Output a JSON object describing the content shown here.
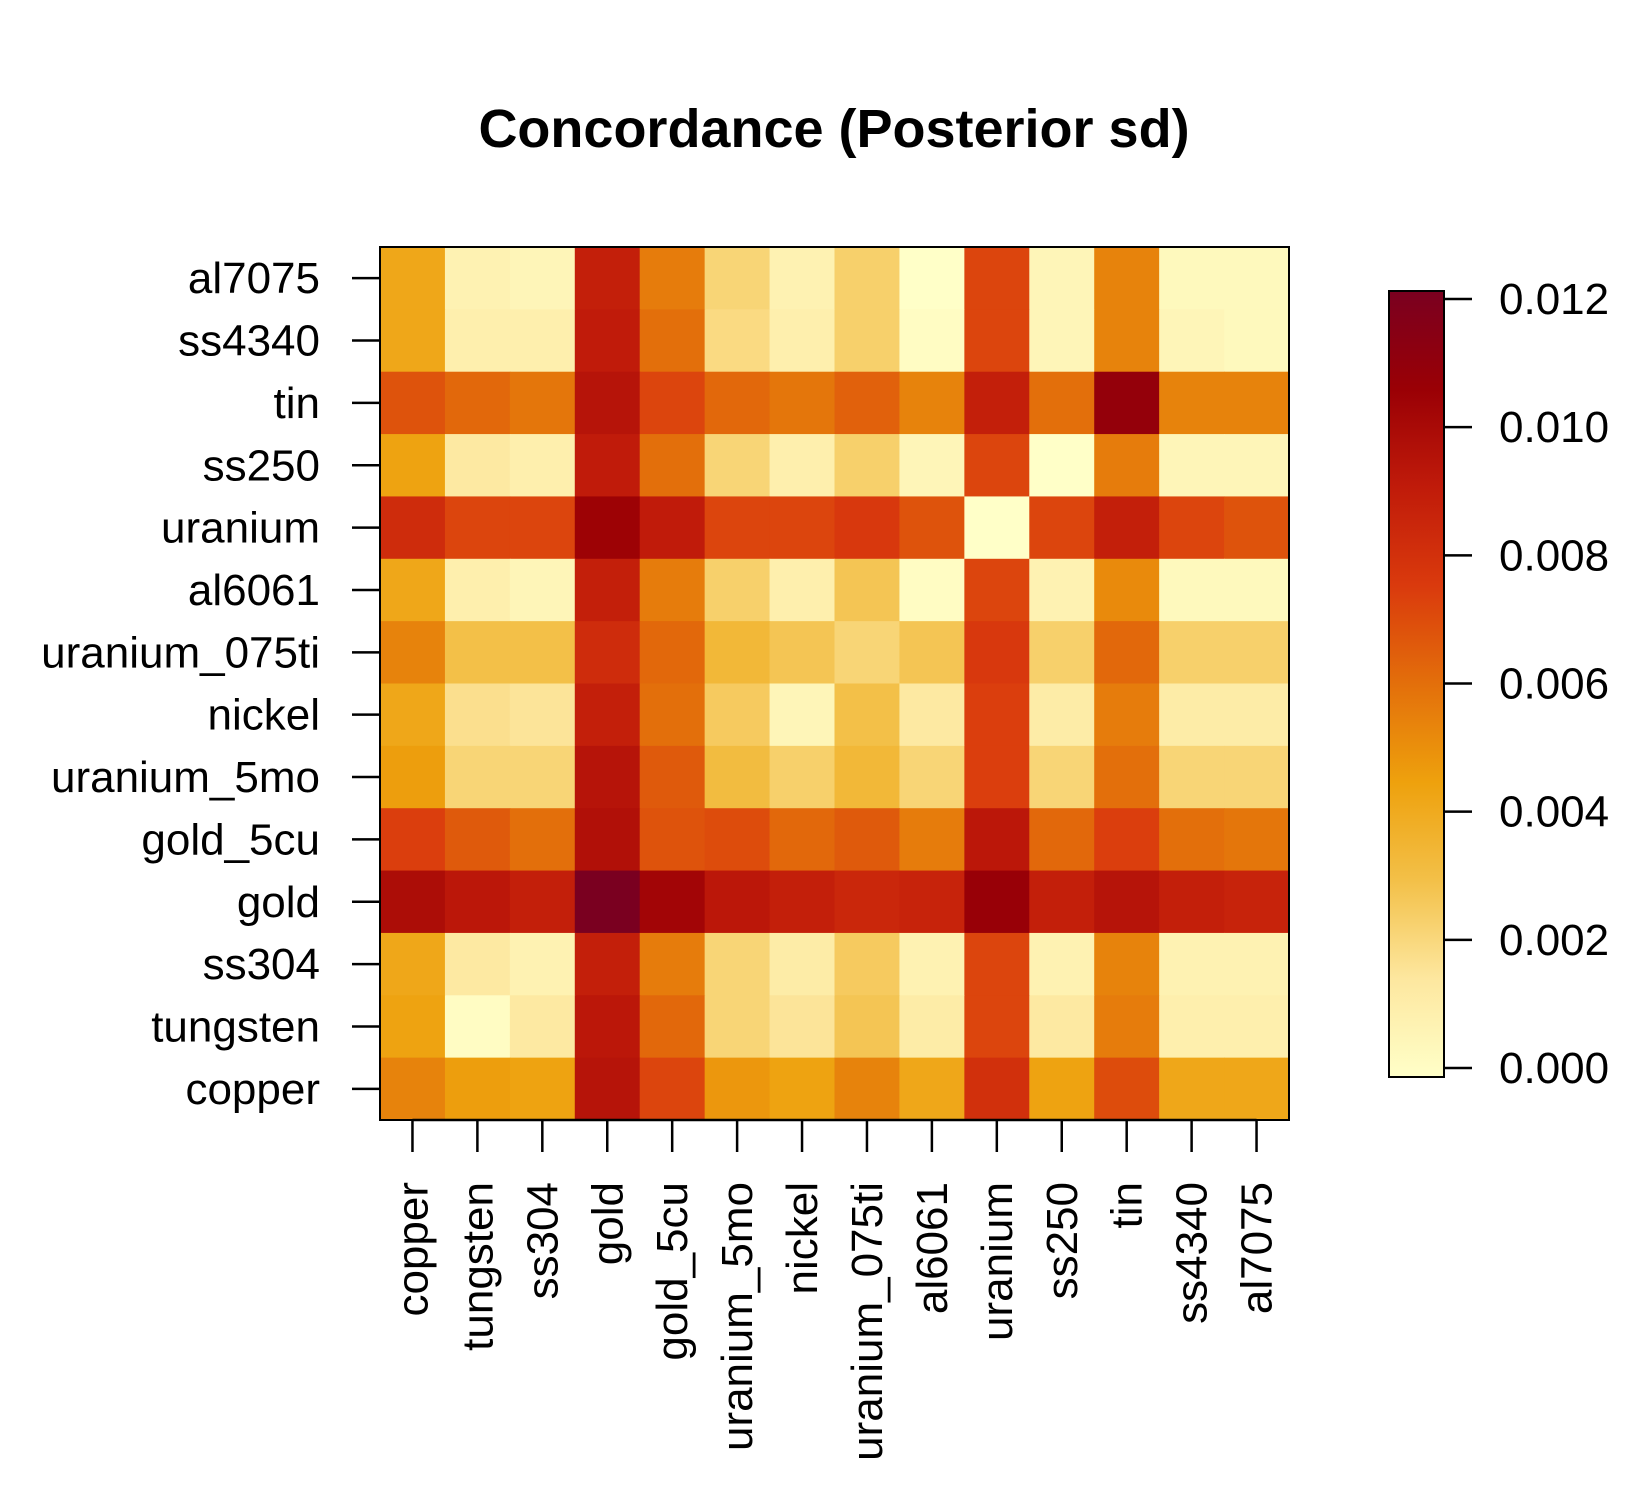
{
  "chart_data": {
    "type": "heatmap",
    "title": "Concordance (Posterior sd)",
    "xlabel": "",
    "ylabel": "",
    "x_categories": [
      "copper",
      "tungsten",
      "ss304",
      "gold",
      "gold_5cu",
      "uranium_5mo",
      "nickel",
      "uranium_075ti",
      "al6061",
      "uranium",
      "ss250",
      "tin",
      "ss4340",
      "al7075"
    ],
    "y_categories_top_to_bottom": [
      "al7075",
      "ss4340",
      "tin",
      "ss250",
      "uranium",
      "al6061",
      "uranium_075ti",
      "nickel",
      "uranium_5mo",
      "gold_5cu",
      "gold",
      "ss304",
      "tungsten",
      "copper"
    ],
    "values": [
      [
        0.0042,
        0.0008,
        0.0006,
        0.0088,
        0.0056,
        0.0022,
        0.0008,
        0.0024,
        0.0,
        0.0072,
        0.0006,
        0.0054,
        0.0004,
        0.0004
      ],
      [
        0.0042,
        0.001,
        0.001,
        0.009,
        0.006,
        0.002,
        0.001,
        0.0024,
        0.0002,
        0.0072,
        0.0006,
        0.0054,
        0.0006,
        0.0004
      ],
      [
        0.0068,
        0.0062,
        0.0058,
        0.0094,
        0.0072,
        0.0062,
        0.0058,
        0.0064,
        0.0054,
        0.0088,
        0.006,
        0.0108,
        0.0054,
        0.0054
      ],
      [
        0.0044,
        0.0014,
        0.001,
        0.009,
        0.006,
        0.0022,
        0.001,
        0.0024,
        0.0006,
        0.0072,
        0.0,
        0.0056,
        0.0006,
        0.0006
      ],
      [
        0.0082,
        0.0072,
        0.0072,
        0.0104,
        0.009,
        0.0072,
        0.0072,
        0.0076,
        0.0068,
        0.0,
        0.0072,
        0.0088,
        0.0072,
        0.0068
      ],
      [
        0.0042,
        0.001,
        0.0006,
        0.0088,
        0.0056,
        0.0024,
        0.001,
        0.0028,
        0.0002,
        0.0072,
        0.0008,
        0.0052,
        0.0004,
        0.0004
      ],
      [
        0.0054,
        0.003,
        0.003,
        0.0082,
        0.0062,
        0.0034,
        0.0028,
        0.0022,
        0.0028,
        0.0076,
        0.0024,
        0.0062,
        0.0024,
        0.0024
      ],
      [
        0.0042,
        0.0018,
        0.0016,
        0.0088,
        0.006,
        0.0026,
        0.0006,
        0.003,
        0.0014,
        0.0074,
        0.0012,
        0.0056,
        0.0012,
        0.0012
      ],
      [
        0.0046,
        0.0022,
        0.0022,
        0.0094,
        0.0066,
        0.0032,
        0.0024,
        0.0034,
        0.0022,
        0.0074,
        0.0022,
        0.006,
        0.0022,
        0.0022
      ],
      [
        0.0074,
        0.0066,
        0.006,
        0.0096,
        0.0068,
        0.007,
        0.0062,
        0.0066,
        0.0056,
        0.0092,
        0.0062,
        0.0074,
        0.006,
        0.0058
      ],
      [
        0.0098,
        0.0092,
        0.0088,
        0.012,
        0.0102,
        0.0092,
        0.0088,
        0.0084,
        0.0086,
        0.0106,
        0.0088,
        0.0094,
        0.0088,
        0.0086
      ],
      [
        0.0042,
        0.0014,
        0.0008,
        0.0088,
        0.0056,
        0.0022,
        0.0012,
        0.0026,
        0.0008,
        0.0072,
        0.0008,
        0.0054,
        0.0008,
        0.0008
      ],
      [
        0.0044,
        0.0002,
        0.0014,
        0.0092,
        0.0062,
        0.0022,
        0.0016,
        0.0028,
        0.0012,
        0.0072,
        0.0014,
        0.0056,
        0.001,
        0.001
      ],
      [
        0.0054,
        0.0046,
        0.0044,
        0.0094,
        0.0072,
        0.0048,
        0.0044,
        0.0054,
        0.0042,
        0.008,
        0.0044,
        0.007,
        0.0042,
        0.0042
      ]
    ],
    "legend": {
      "min": 0.0,
      "max": 0.012,
      "ticks": [
        "0.000",
        "0.002",
        "0.004",
        "0.006",
        "0.008",
        "0.010",
        "0.012"
      ],
      "colors": [
        "#FFFFC8",
        "#FDE79F",
        "#F3C048",
        "#EEA10D",
        "#E36F0B",
        "#DA3A0D",
        "#C01B0A",
        "#9A0005",
        "#7A0020"
      ]
    }
  }
}
